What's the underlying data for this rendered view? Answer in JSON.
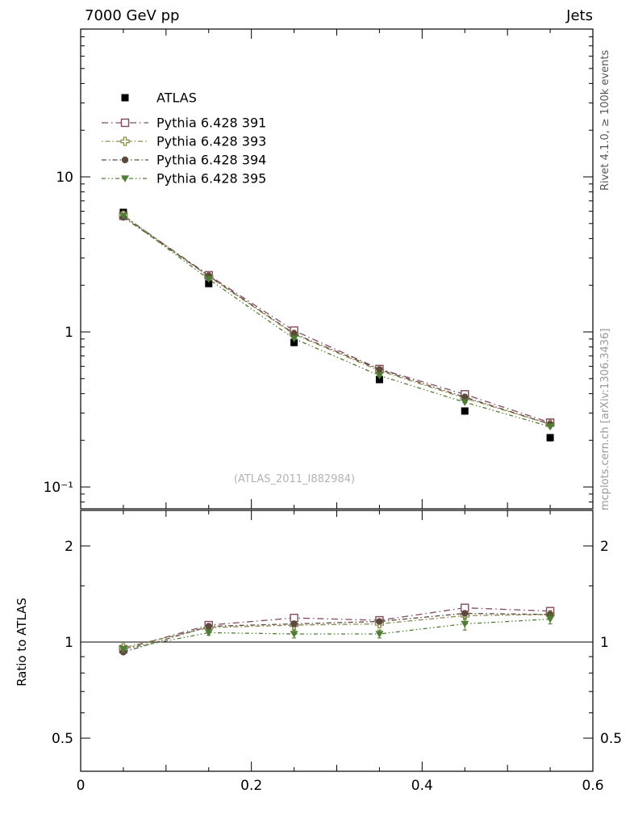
{
  "header": {
    "left": "7000 GeV pp",
    "right": "Jets"
  },
  "side_labels": {
    "top": "Rivet 4.1.0, ≥ 100k events",
    "bottom": "mcplots.cern.ch [arXiv:1306.3436]"
  },
  "watermark": "(ATLAS_2011_I882984)",
  "chart_data": {
    "type": "line",
    "x": [
      0.05,
      0.15,
      0.25,
      0.35,
      0.45,
      0.55
    ],
    "x_axis": {
      "min": 0,
      "max": 0.6,
      "major_ticks": [
        0,
        0.2,
        0.4,
        0.6
      ],
      "labels": [
        "0",
        "0.2",
        "0.4",
        "0.6"
      ]
    },
    "y_main_axis": {
      "scale": "log",
      "range": [
        0.072,
        90
      ],
      "ticks": [
        10,
        1,
        0.1
      ],
      "labels": [
        "10",
        "1",
        "10⁻¹"
      ]
    },
    "y_ratio_axis": {
      "scale": "log",
      "range": [
        0.39,
        2.6
      ],
      "ticks": [
        2,
        1,
        0.5
      ],
      "labels": [
        "2",
        "1",
        "0.5"
      ],
      "title": "Ratio to ATLAS"
    },
    "legend_position": "top-left",
    "grid": false,
    "series": [
      {
        "name": "ATLAS",
        "color": "#000000",
        "marker": "square-filled",
        "line": "none",
        "main_values": [
          5.9,
          2.05,
          0.855,
          0.493,
          0.309,
          0.208
        ],
        "main_errors": [
          0.25,
          0.09,
          0.04,
          0.022,
          0.014,
          0.01
        ]
      },
      {
        "name": "Pythia 6.428 391",
        "color": "#824a63",
        "marker": "square-open",
        "line": "8 4 1.5 4",
        "main_values": [
          5.61,
          2.32,
          1.02,
          0.577,
          0.396,
          0.26
        ],
        "ratio_values": [
          0.95,
          1.13,
          1.19,
          1.17,
          1.28,
          1.25
        ],
        "ratio_errors": [
          0.015,
          0.015,
          0.015,
          0.015,
          0.02,
          0.02
        ]
      },
      {
        "name": "Pythia 6.428 393",
        "color": "#8a8a4a",
        "marker": "plus-open",
        "line": "1.5 3 6 3",
        "main_values": [
          5.66,
          2.28,
          0.966,
          0.562,
          0.374,
          0.254
        ],
        "ratio_values": [
          0.96,
          1.11,
          1.13,
          1.14,
          1.21,
          1.22
        ],
        "ratio_errors": [
          0.015,
          0.015,
          0.02,
          0.02,
          0.025,
          0.025
        ]
      },
      {
        "name": "Pythia 6.428 394",
        "color": "#5d4a3c",
        "marker": "circle-filled",
        "line": "6 3 1.5 3",
        "main_values": [
          5.49,
          2.3,
          0.975,
          0.572,
          0.38,
          0.254
        ],
        "ratio_values": [
          0.93,
          1.12,
          1.14,
          1.16,
          1.23,
          1.22
        ],
        "ratio_errors": [
          0.015,
          0.015,
          0.015,
          0.015,
          0.02,
          0.02
        ]
      },
      {
        "name": "Pythia 6.428 395",
        "color": "#4e7d33",
        "marker": "triangle-down-filled",
        "line": "5 3 1.5 3 1.5 3",
        "main_values": [
          5.61,
          2.19,
          0.906,
          0.523,
          0.352,
          0.245
        ],
        "ratio_values": [
          0.95,
          1.07,
          1.06,
          1.06,
          1.14,
          1.18
        ],
        "ratio_errors": [
          0.02,
          0.02,
          0.03,
          0.03,
          0.05,
          0.04
        ]
      }
    ]
  }
}
